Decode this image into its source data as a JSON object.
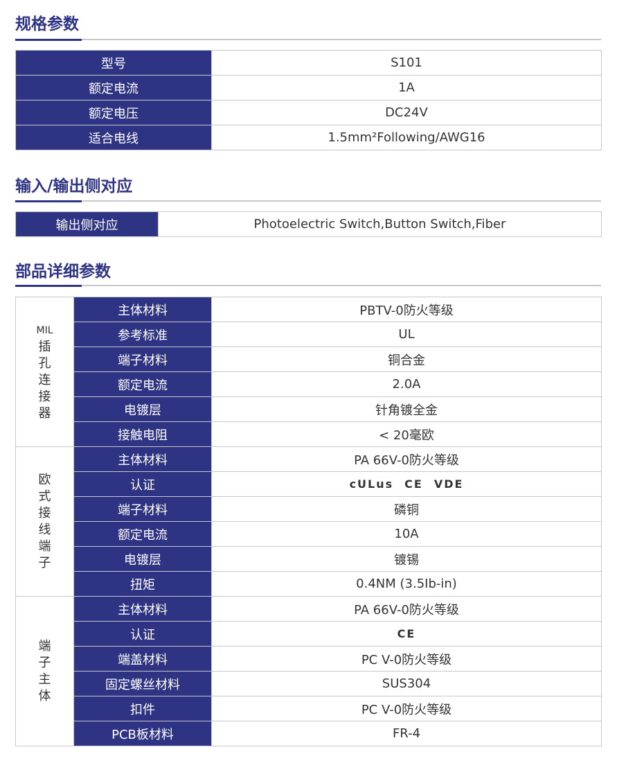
{
  "sections": [
    {
      "title": "规格参数",
      "rows": [
        [
          "型号",
          "S101"
        ],
        [
          "额定电流",
          "1A"
        ],
        [
          "额定电压",
          "DC24V"
        ],
        [
          "适合电线",
          "1.5mm²Following/AWG16"
        ]
      ]
    },
    {
      "title": "输入/输出侧对应",
      "rows": [
        [
          "输出侧对应",
          "Photoelectric Switch,Button Switch,Fiber"
        ]
      ]
    },
    {
      "title": "部品详细参数",
      "groups": [
        {
          "prefix": "MIL",
          "name": "插孔连接器",
          "rows": [
            [
              "主体材料",
              "PBTV-0防火等级"
            ],
            [
              "参考标准",
              "UL"
            ],
            [
              "端子材料",
              "铜合金"
            ],
            [
              "额定电流",
              "2.0A"
            ],
            [
              "电镀层",
              "针角镀全金"
            ],
            [
              "接触电阻",
              "< 20毫欧"
            ]
          ]
        },
        {
          "prefix": "",
          "name": "欧式接线端子",
          "rows": [
            [
              "主体材料",
              "PA 66V-0防火等级"
            ],
            [
              "认证",
              ""
            ],
            [
              "端子材料",
              "磷铜"
            ],
            [
              "额定电流",
              "10A"
            ],
            [
              "电镀层",
              "镀锡"
            ],
            [
              "扭矩",
              "0.4NM (3.5Ib-in)"
            ]
          ]
        },
        {
          "prefix": "",
          "name": "端子主体",
          "rows": [
            [
              "主体材料",
              "PA 66V-0防火等级"
            ],
            [
              "认证",
              ""
            ],
            [
              "端盖材料",
              "PC V-0防火等级"
            ],
            [
              "固定螺丝材料",
              "SUS304"
            ],
            [
              "扣件",
              "PC V-0防火等级"
            ],
            [
              "PCB板材料",
              "FR-4"
            ]
          ]
        }
      ]
    }
  ],
  "certs": {
    "euro": [
      "cULus",
      "CE",
      "VDE"
    ],
    "body": [
      "CE"
    ]
  },
  "colors": {
    "accent": "#2e3384",
    "border": "#c8c8c8"
  }
}
